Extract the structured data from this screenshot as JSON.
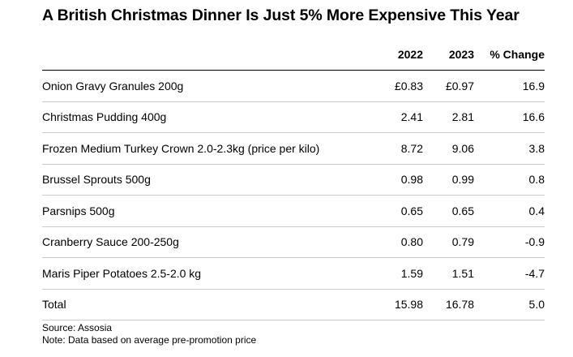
{
  "chart_data": {
    "type": "table",
    "title": "A British Christmas Dinner Is Just 5% More Expensive This Year",
    "columns": [
      "",
      "2022",
      "2023",
      "% Change"
    ],
    "rows": [
      {
        "item": "Onion Gravy Granules 200g",
        "y2022": "£0.83",
        "y2023": "£0.97",
        "change": "16.9"
      },
      {
        "item": "Christmas Pudding 400g",
        "y2022": "2.41",
        "y2023": "2.81",
        "change": "16.6"
      },
      {
        "item": "Frozen Medium Turkey Crown 2.0-2.3kg (price per kilo)",
        "y2022": "8.72",
        "y2023": "9.06",
        "change": "3.8"
      },
      {
        "item": "Brussel Sprouts 500g",
        "y2022": "0.98",
        "y2023": "0.99",
        "change": "0.8"
      },
      {
        "item": "Parsnips 500g",
        "y2022": "0.65",
        "y2023": "0.65",
        "change": "0.4"
      },
      {
        "item": "Cranberry Sauce 200-250g",
        "y2022": "0.80",
        "y2023": "0.79",
        "change": "-0.9"
      },
      {
        "item": "Maris Piper Potatoes 2.5-2.0 kg",
        "y2022": "1.59",
        "y2023": "1.51",
        "change": "-4.7"
      },
      {
        "item": "Total",
        "y2022": "15.98",
        "y2023": "16.78",
        "change": "5.0"
      }
    ],
    "source": "Source: Assosia",
    "note": "Note: Data based on average pre-promotion price"
  }
}
